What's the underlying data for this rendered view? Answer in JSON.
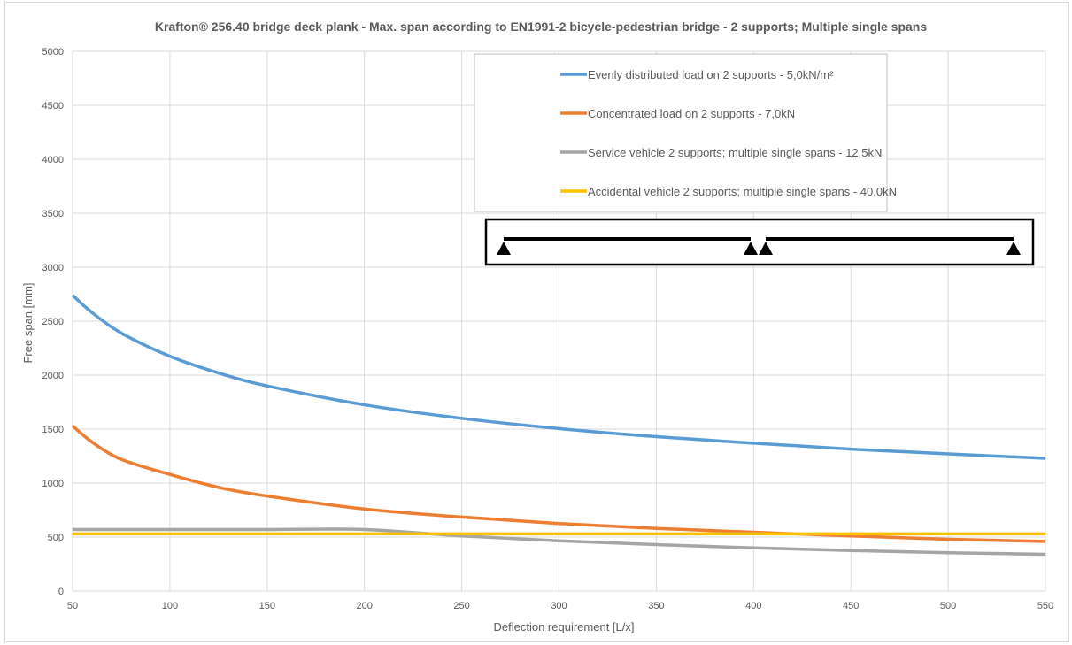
{
  "chart_data": {
    "type": "line",
    "title": "Krafton® 256.40 bridge deck plank  - Max. span according to EN1991-2 bicycle-pedestrian bridge - 2 supports; Multiple single spans",
    "xlabel": "Deflection requirement [L/x]",
    "ylabel": "Free span [mm]",
    "xlim": [
      50,
      550
    ],
    "ylim": [
      0,
      5000
    ],
    "xticks": [
      50,
      100,
      150,
      200,
      250,
      300,
      350,
      400,
      450,
      500,
      550
    ],
    "yticks": [
      0,
      500,
      1000,
      1500,
      2000,
      2500,
      3000,
      3500,
      4000,
      4500,
      5000
    ],
    "grid": true,
    "legend_position": "top-right",
    "x": [
      50,
      60,
      75,
      100,
      125,
      150,
      200,
      250,
      300,
      350,
      400,
      450,
      500,
      550
    ],
    "series": [
      {
        "name": "Evenly distributed load on 2 supports - 5,0kN/m²",
        "color": "#5b9bd5",
        "values": [
          2740,
          2580,
          2390,
          2175,
          2020,
          1900,
          1725,
          1600,
          1505,
          1430,
          1370,
          1315,
          1270,
          1230
        ]
      },
      {
        "name": "Concentrated load on 2 supports - 7,0kN",
        "color": "#ed7d31",
        "values": [
          1530,
          1380,
          1220,
          1080,
          960,
          880,
          760,
          685,
          625,
          580,
          545,
          510,
          480,
          460
        ]
      },
      {
        "name": "Service vehicle 2 supports; multiple single spans - 12,5kN",
        "color": "#a5a5a5",
        "values": [
          570,
          570,
          570,
          570,
          570,
          570,
          570,
          510,
          465,
          430,
          400,
          375,
          355,
          340
        ]
      },
      {
        "name": "Accidental vehicle 2 supports; multiple single spans - 40,0kN",
        "color": "#ffc000",
        "values": [
          530,
          530,
          530,
          530,
          530,
          530,
          530,
          530,
          530,
          530,
          530,
          530,
          530,
          530
        ]
      }
    ]
  }
}
